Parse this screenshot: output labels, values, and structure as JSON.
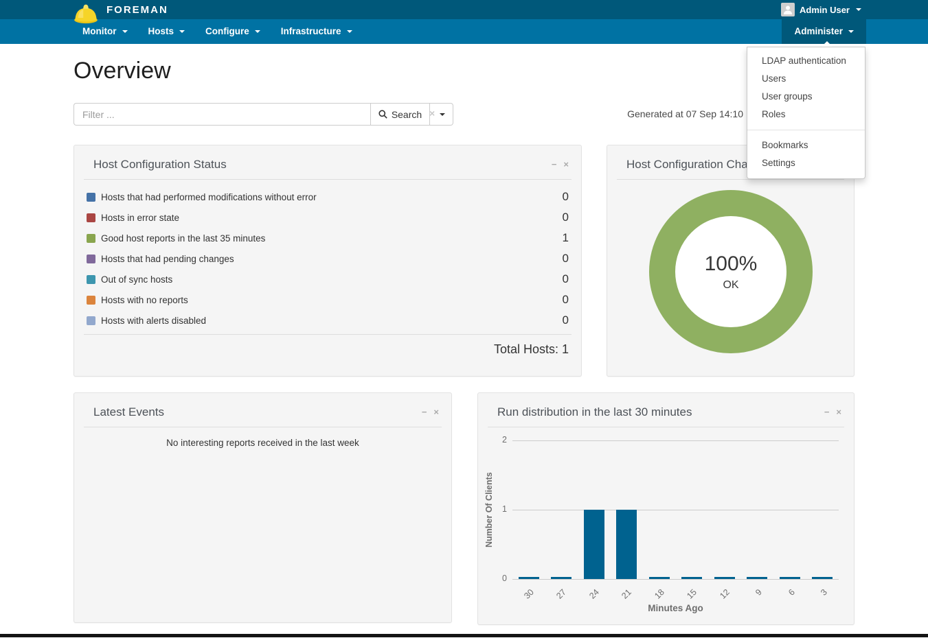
{
  "colors": {
    "topbar_bg": "#00587a",
    "navbar_bg": "#0072a3",
    "active_nav_bg": "#00587a"
  },
  "topbar": {
    "brand": "FOREMAN",
    "user": "Admin User"
  },
  "navbar": {
    "items": [
      {
        "label": "Monitor"
      },
      {
        "label": "Hosts"
      },
      {
        "label": "Configure"
      },
      {
        "label": "Infrastructure"
      }
    ],
    "admin": {
      "label": "Administer"
    }
  },
  "admin_menu": {
    "top_items": [
      "LDAP authentication",
      "Users",
      "User groups",
      "Roles"
    ],
    "bottom_items": [
      "Bookmarks",
      "Settings"
    ]
  },
  "page": {
    "title": "Overview",
    "generated_text": "Generated at 07 Sep 14:10"
  },
  "search": {
    "placeholder": "Filter ...",
    "clear_icon": "×",
    "button_label": "Search"
  },
  "status_panel": {
    "title": "Host Configuration Status",
    "minimize_icon": "−",
    "close_icon": "×",
    "rows": [
      {
        "color": "#4572a7",
        "label": "Hosts that had performed modifications without error",
        "value": "0"
      },
      {
        "color": "#aa4643",
        "label": "Hosts in error state",
        "value": "0"
      },
      {
        "color": "#89a54e",
        "label": "Good host reports in the last 35 minutes",
        "value": "1"
      },
      {
        "color": "#80699b",
        "label": "Hosts that had pending changes",
        "value": "0"
      },
      {
        "color": "#3d96ae",
        "label": "Out of sync hosts",
        "value": "0"
      },
      {
        "color": "#db843d",
        "label": "Hosts with no reports",
        "value": "0"
      },
      {
        "color": "#92a8cd",
        "label": "Hosts with alerts disabled",
        "value": "0"
      }
    ],
    "total": "Total Hosts: 1"
  },
  "donut_panel": {
    "title": "Host Configuration Chart",
    "minimize_icon": "−",
    "close_icon": "×",
    "percent": "100%",
    "status": "OK"
  },
  "events_panel": {
    "title": "Latest Events",
    "minimize_icon": "−",
    "close_icon": "×",
    "empty_message": "No interesting reports received in the last week"
  },
  "run_panel": {
    "title": "Run distribution in the last 30 minutes",
    "minimize_icon": "−",
    "close_icon": "×"
  },
  "chart_data": [
    {
      "type": "pie",
      "title": "Host Configuration Chart",
      "slices": [
        {
          "label": "OK",
          "value": 100
        }
      ],
      "center_label": "100%",
      "center_sublabel": "OK",
      "color": "#8fb061",
      "legend_position": "none"
    },
    {
      "type": "bar",
      "title": "Run distribution in the last 30 minutes",
      "categories": [
        "30",
        "27",
        "24",
        "21",
        "18",
        "15",
        "12",
        "9",
        "6",
        "3"
      ],
      "values": [
        0,
        0,
        1,
        1,
        0,
        0,
        0,
        0,
        0,
        0
      ],
      "xlabel": "Minutes Ago",
      "ylabel": "Number Of Clients",
      "yticks": [
        2,
        1,
        0
      ],
      "ylim": [
        0,
        2
      ],
      "grid": true,
      "bar_color": "#00628f"
    }
  ]
}
